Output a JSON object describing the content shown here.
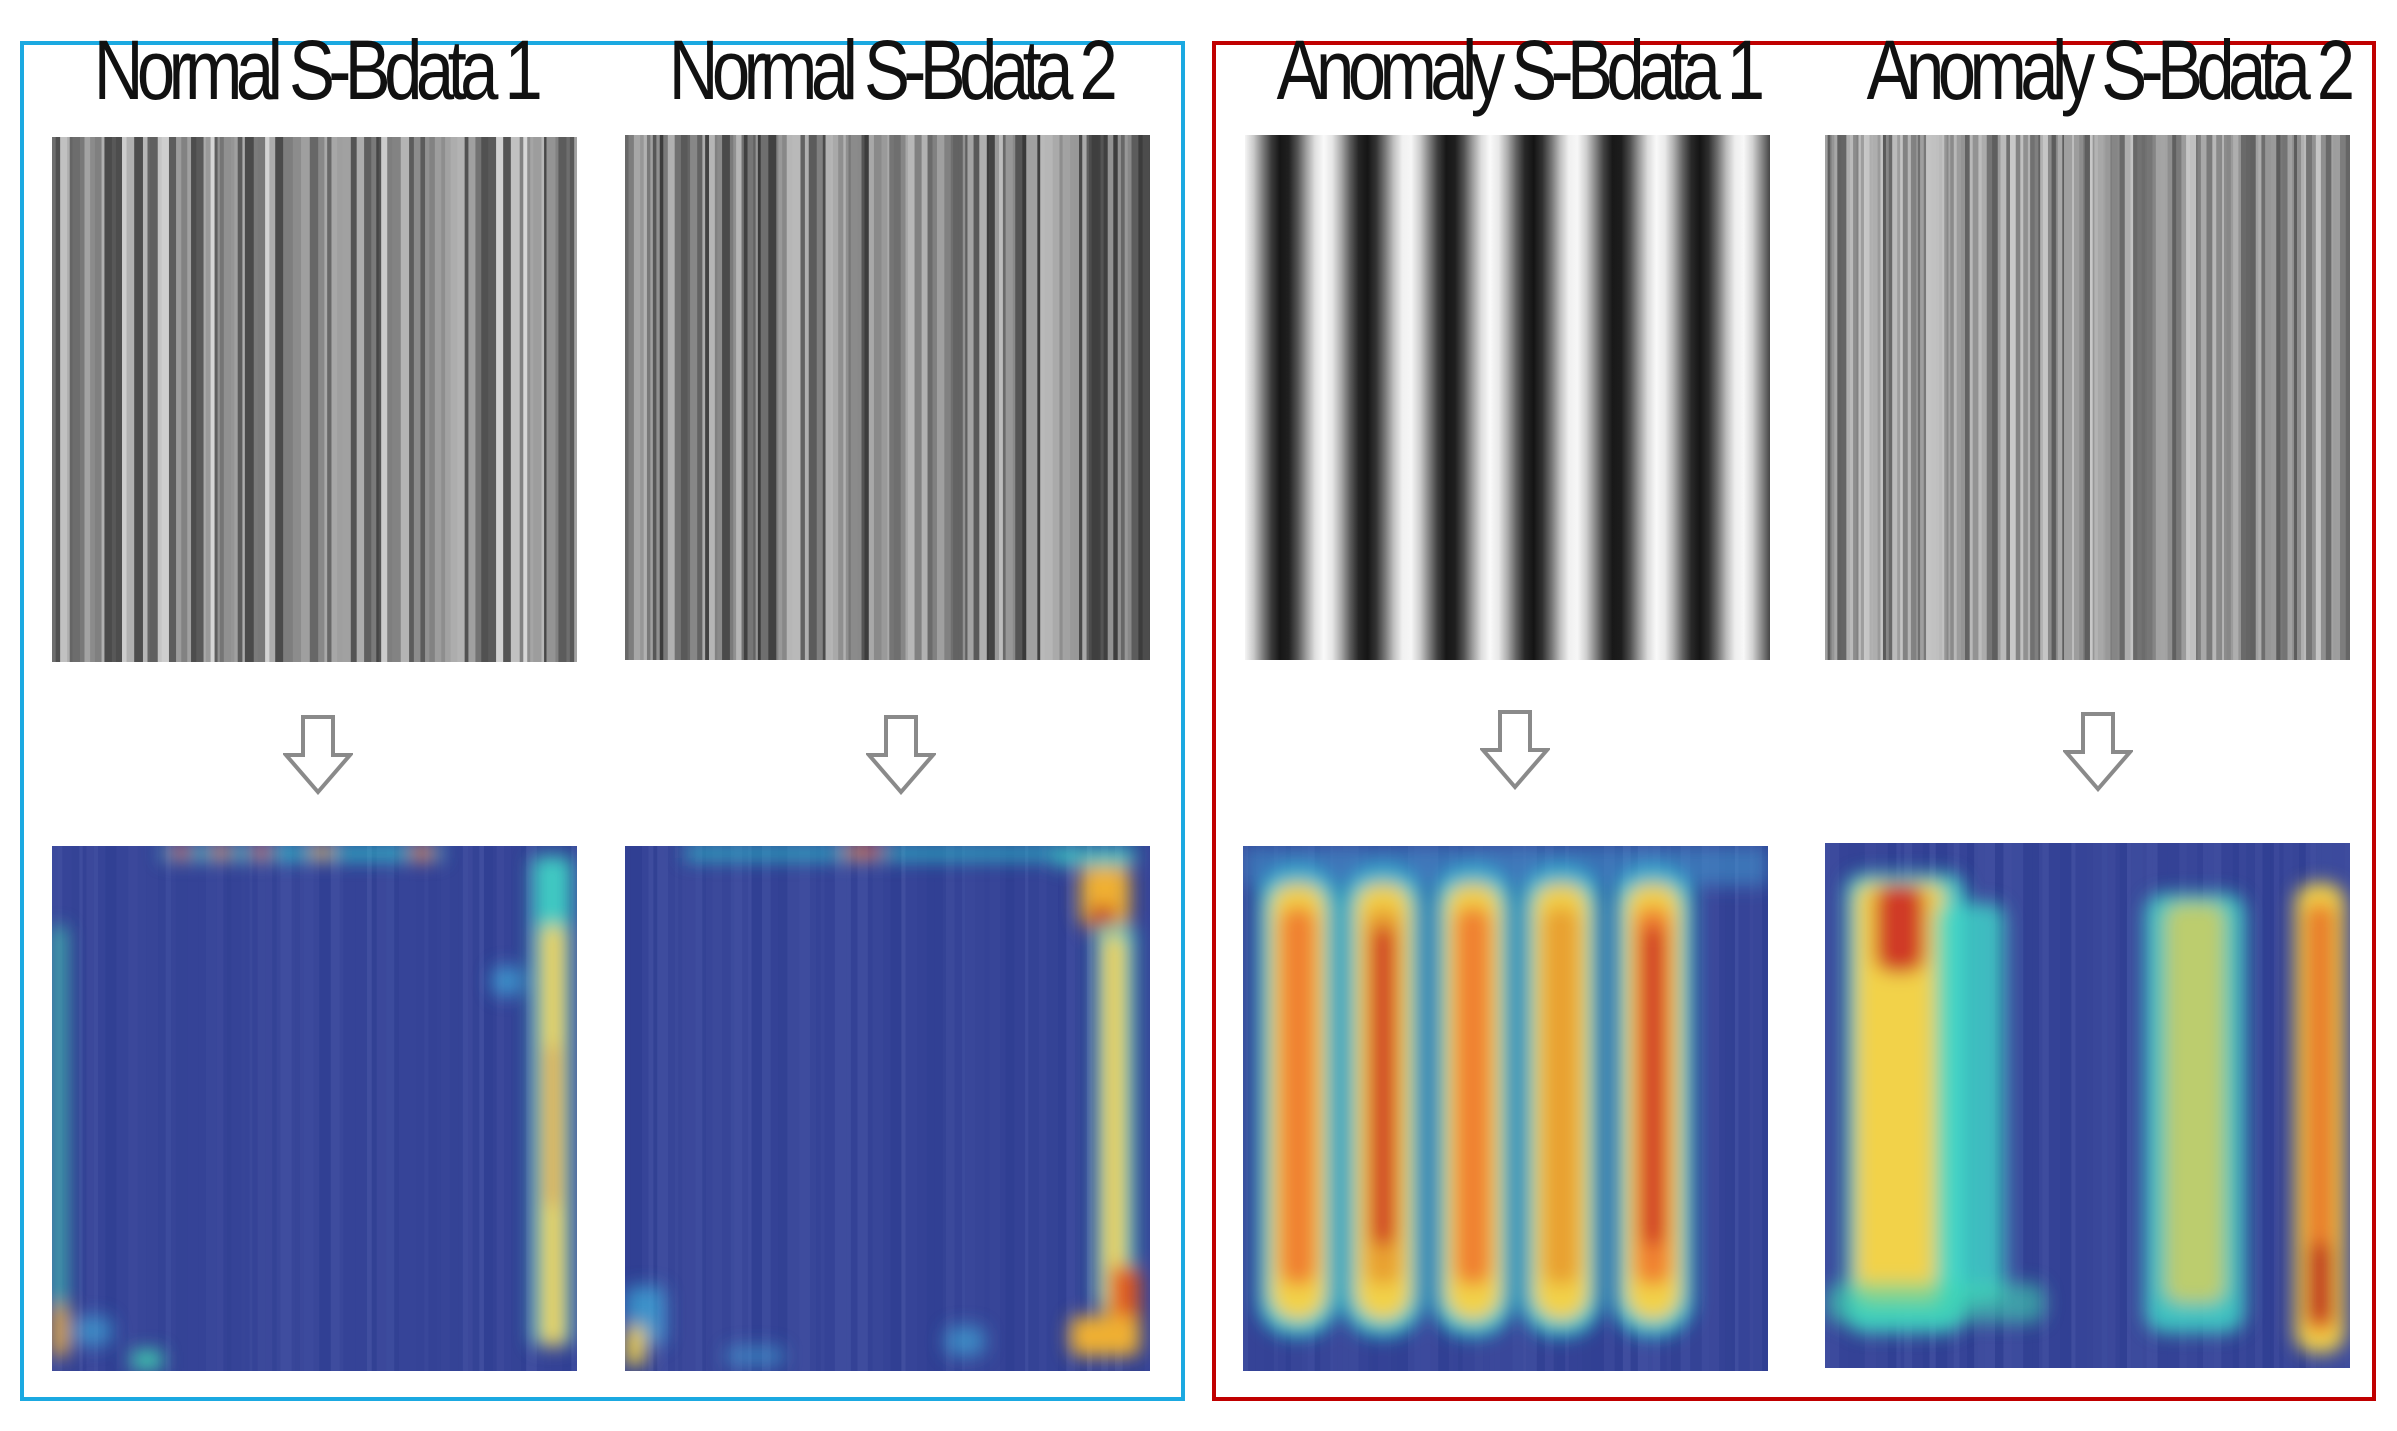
{
  "groups": [
    {
      "key": "normal",
      "color": "#1ba9e1"
    },
    {
      "key": "anomaly",
      "color": "#c00000"
    }
  ],
  "columns": [
    {
      "title": "Normal S-Bdata 1"
    },
    {
      "title": "Normal S-Bdata 2"
    },
    {
      "title": "Anomaly S-Bdata 1"
    },
    {
      "title": "Anomaly S-Bdata 2"
    }
  ]
}
